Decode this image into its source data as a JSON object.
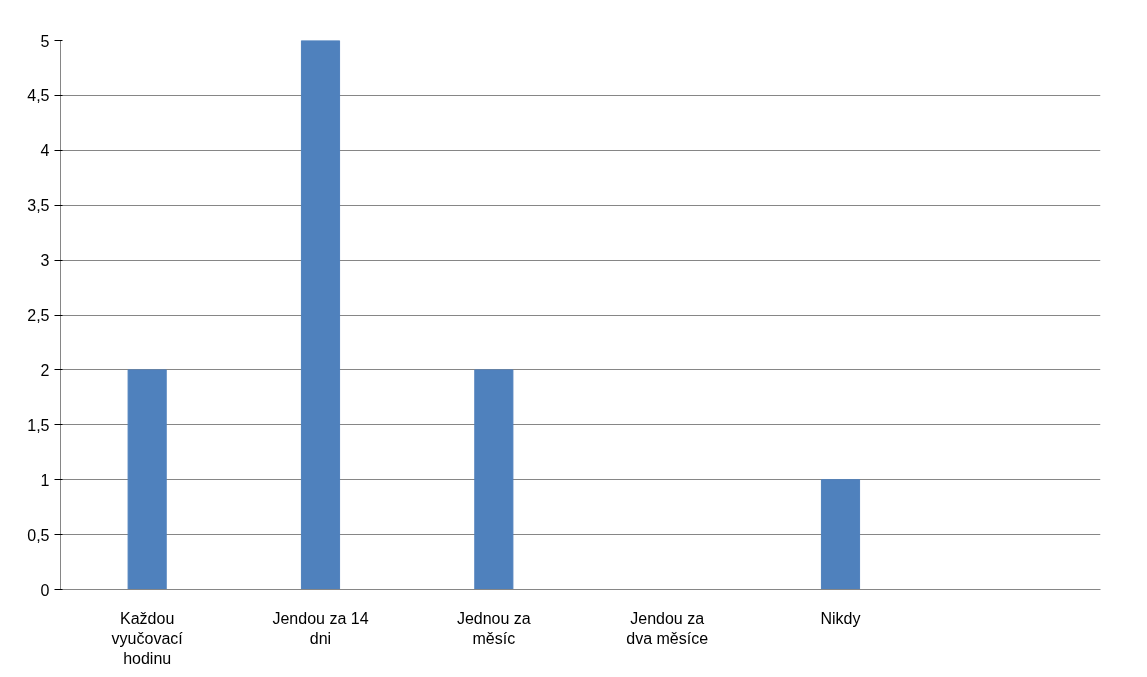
{
  "chart_data": {
    "type": "bar",
    "categories": [
      "Každou vyučovací hodinu",
      "Jendou za 14 dni",
      "Jednou za měsíc",
      "Jendou za dva měsíce",
      "Nikdy",
      null
    ],
    "values": [
      2,
      5,
      2,
      0,
      1,
      null
    ],
    "color": "#4f81bd",
    "ylim": [
      0,
      5
    ],
    "yticks": [
      0,
      {
        "value": 0.5,
        "label": "0,5"
      },
      1,
      {
        "value": 1.5,
        "label": "1,5"
      },
      2,
      {
        "value": 2.5,
        "label": "2,5"
      },
      3,
      {
        "value": 3.5,
        "label": "3,5"
      },
      4,
      {
        "value": 4.5,
        "label": "4,5"
      },
      5
    ],
    "grid": "y"
  }
}
